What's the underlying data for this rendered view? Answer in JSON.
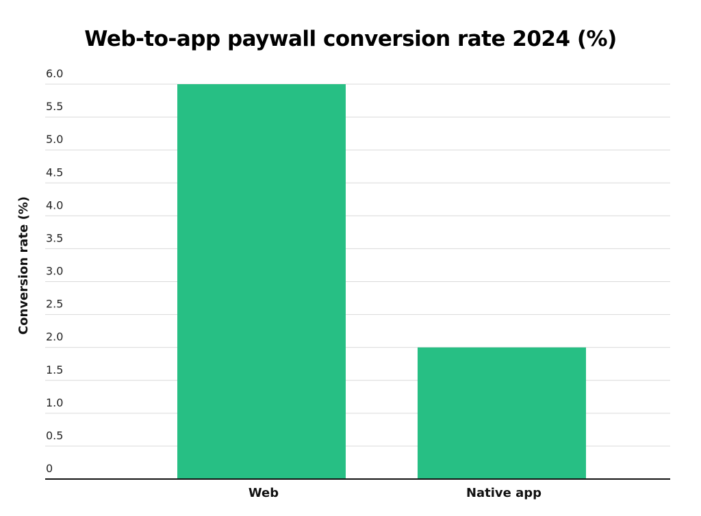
{
  "chart_data": {
    "type": "bar",
    "title": "Web-to-app paywall conversion rate 2024 (%)",
    "xlabel": "",
    "ylabel": "Conversion rate (%)",
    "categories": [
      "Web",
      "Native app"
    ],
    "values": [
      6.0,
      2.0
    ],
    "ylim": [
      0,
      6.0
    ],
    "yticks": [
      "0",
      "0.5",
      "1.0",
      "1.5",
      "2.0",
      "2.5",
      "3.0",
      "3.5",
      "4.0",
      "4.5",
      "5.0",
      "5.5",
      "6.0"
    ],
    "grid": true,
    "legend": "none",
    "bar_color": "#27bf84"
  }
}
